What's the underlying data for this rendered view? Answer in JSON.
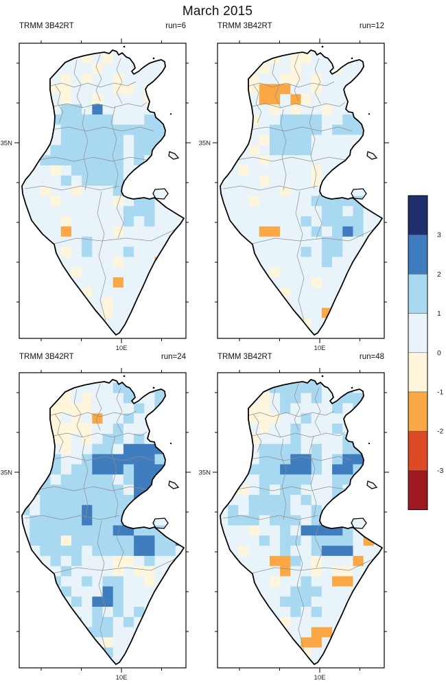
{
  "title": "March 2015",
  "colorbar": {
    "tick_labels": [
      "3",
      "2",
      "1",
      "0",
      "-1",
      "-2",
      "-3"
    ],
    "colors_top_to_bottom": [
      "#20306e",
      "#3f7dbf",
      "#a8d9f1",
      "#e9f4fa",
      "#fdf6dd",
      "#f9a845",
      "#dd4a26",
      "#9c1a20"
    ]
  },
  "chart_data_key": {
    "cell_values": {
      ".": 0.5,
      "c": -0.5,
      "b": 1.5,
      "B": 2.5,
      "N": 3.5,
      "o": -1.5,
      "r": -2.5,
      "R": -3.5
    },
    "cell_colors": {
      ".": "#e9f4fa",
      "c": "#fdf6dd",
      "b": "#a8d9f1",
      "B": "#3f7dbf",
      "N": "#20306e",
      "o": "#f9a845",
      "r": "#dd4a26",
      "R": "#9c1a20"
    },
    "bin_edges": [
      -3,
      -2,
      -1,
      0,
      1,
      2,
      3
    ],
    "grid_note": "16 columns x 29 rows, approx 0.25-degree cells over Tunisia, clipped to country outline"
  },
  "chart_data": [
    {
      "type": "heatmap",
      "title": "TRMM 3B42RT",
      "subtitle": "run=6",
      "region": "Tunisia",
      "x_tick_label": "10E",
      "y_tick_label": "35N",
      "grid_rows": [
        "................",
        "......c.c.......",
        ".......c........",
        "....c.c..c......",
        "...cc....cc.c...",
        "....c..c....c...",
        "..c.bb.B........",
        "...bbbbbb...bb..",
        "..c.bbbbbbbbbb..",
        "....bbbbbb.bbbb.",
        "...bbbbbbb.bb...",
        "..bbbbbbbb.b....",
        "...c.bbbbb......",
        "....b.bbbb.b....",
        "..c..c...bb.....",
        "...c.....c.bb...",
        "..........bbb...",
        "....c.....b.b...",
        "....o....c......",
        "......b.........",
        "....c.b...b.....",
        ".........c...o..",
        ".....c.......b..",
        ".........o......",
        "......c.........",
        ".....c..c.......",
        "......c.c.......",
        ".......c........",
        "................"
      ]
    },
    {
      "type": "heatmap",
      "title": "TRMM 3B42RT",
      "subtitle": "run=12",
      "region": "Tunisia",
      "x_tick_label": "10E",
      "y_tick_label": "35N",
      "grid_rows": [
        "......c.c.......",
        ".....c.cc.......",
        "....c..c...c....",
        "...c..cc.c....c.",
        "...cooo..c......",
        "....oo.oc.......",
        "..c..c.c..c.....",
        "...c..bbbb..bb..",
        "..c..bbbbb.bbb..",
        "....cbbbb.......",
        "...c.bbbb.......",
        "....c...........",
        "..c......c......",
        "....c....c......",
        "......c...bb....",
        "...c.....bbbbb..",
        "..........bb.b..",
        "........b.bbbb..",
        "....oo...b.bBb..",
        "..........bb....",
        "........b.bb....",
        "..........b.....",
        ".....c..........",
        ".........c......",
        "......c.........",
        "................",
        "..........o.....",
        "........c.......",
        "................"
      ]
    },
    {
      "type": "heatmap",
      "title": "TRMM 3B42RT",
      "subtitle": "run=24",
      "region": "Tunisia",
      "x_tick_label": "10E",
      "y_tick_label": "35N",
      "grid_rows": [
        "......b...b.....",
        "....c....bb.bb..",
        "..ccc.c...b..b..",
        "..ccccc....b.b..",
        "..cc.c.o..b.....",
        "..ccccc..b......",
        "...cc.c.bb.b....",
        "..b.c..bb.BBBB..",
        "...b..bBBBBBBb..",
        "..bb.bbBBBbBBB..",
        "..b.bbbbb.bBBb..",
        ".bbbbbbbbb.BB...",
        "..bbbbbbbbbBb...",
        "b.bbbbBbbbbb....",
        ".bbbbbBbbbbbb...",
        ".bbbbbbbbBBbbb..",
        ".bbbcbbbbbbBBbbB",
        "..bbbb.bbbbBBbb.",
        "...b.b...cc.b...",
        "....b....c.cc...",
        "...b..b.bb..c...",
        "....b...Bb......",
        ".....b.BBb......",
        "....b..b.b.b....",
        ".....b.bb.b.....",
        "......bbb.......",
        ".....b..c.......",
        "........b.......",
        "................"
      ]
    },
    {
      "type": "heatmap",
      "title": "TRMM 3B42RT",
      "subtitle": "run=48",
      "region": "Tunisia",
      "x_tick_label": "10E",
      "y_tick_label": "35N",
      "grid_rows": [
        "......b.bb......",
        ".....bbbbb..b...",
        "....c.bb.b.bbb..",
        "..ccc.b....b.b..",
        "..cccc..b.......",
        "..c.c..b...b.b..",
        "...c...b....bb..",
        "....bbbb.b..bb..",
        "..c.bbbBBb.bBB..",
        "..cbbbBBBb.BBb..",
        "....bbbbb..bb...",
        "..c.b.bb...b....",
        "...bbbb.b..b....",
        ".b.bbbb..b.bb...",
        ".bbb.bbb.bbbb...",
        "...c..b.BBBBb...",
        "....b.bb.bbbb.o.",
        "..c...b..bBBB...",
        ".....oob.c...o..",
        "..c...o..c.cc...",
        ".....c..b..oo...",
        ".......bbb......",
        "......bbb.......",
        "....b..b.b......",
        "......c.........",
        ".........oo.....",
        ".....c..oo......",
        "........c.......",
        "................"
      ]
    }
  ]
}
